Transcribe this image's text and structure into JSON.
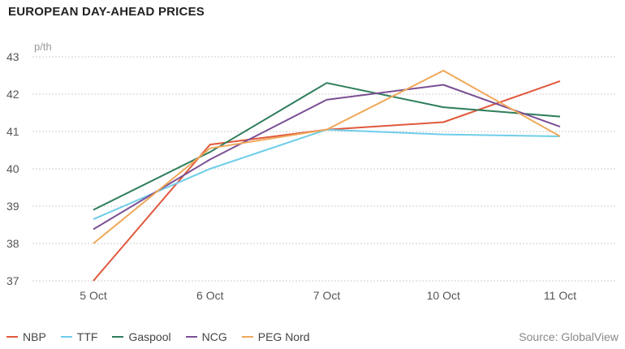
{
  "chart_data": {
    "type": "line",
    "title": "EUROPEAN DAY-AHEAD PRICES",
    "ylabel": "p/th",
    "xlabel": "",
    "categories": [
      "5 Oct",
      "6 Oct",
      "7 Oct",
      "10 Oct",
      "11 Oct"
    ],
    "ylim": [
      37,
      43
    ],
    "yticks": [
      "37",
      "38",
      "39",
      "40",
      "41",
      "42",
      "43"
    ],
    "grid": true,
    "legend_position": "bottom-left",
    "series": [
      {
        "name": "NBP",
        "color": "#e0583b",
        "values": [
          37.0,
          40.65,
          41.05,
          41.25,
          42.35
        ]
      },
      {
        "name": "TTF",
        "color": "#6fcde9",
        "values": [
          38.65,
          40.0,
          41.05,
          40.92,
          40.87
        ]
      },
      {
        "name": "Gaspool",
        "color": "#2e7d5b",
        "values": [
          38.9,
          40.45,
          42.3,
          41.65,
          41.4
        ]
      },
      {
        "name": "NCG",
        "color": "#7b4f94",
        "values": [
          38.38,
          40.25,
          41.85,
          42.25,
          41.13
        ]
      },
      {
        "name": "PEG Nord",
        "color": "#f0a85a",
        "values": [
          38.0,
          40.55,
          41.05,
          42.63,
          40.87
        ]
      }
    ]
  },
  "source": "Source: GlobalView"
}
